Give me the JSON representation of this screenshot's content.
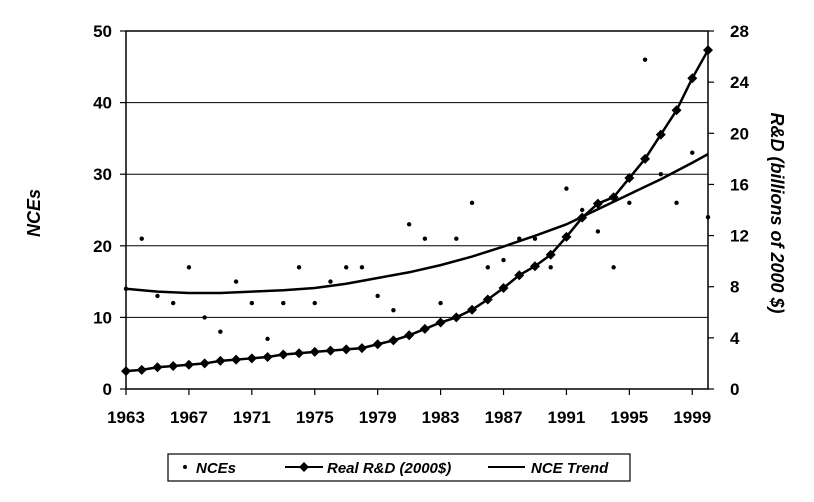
{
  "chart_data": {
    "type": "line",
    "xlabel": "",
    "ylabel": "NCEs",
    "y2label": "R&D (billions of 2000 $)",
    "xlim": [
      1963,
      2000
    ],
    "ylim": [
      0,
      50
    ],
    "y2lim": [
      0,
      28
    ],
    "x_ticks": [
      "1963",
      "1967",
      "1971",
      "1975",
      "1979",
      "1983",
      "1987",
      "1991",
      "1995",
      "1999"
    ],
    "y_ticks": [
      "0",
      "10",
      "20",
      "30",
      "40",
      "50"
    ],
    "y2_ticks": [
      "0",
      "4",
      "8",
      "12",
      "16",
      "20",
      "24",
      "28"
    ],
    "grid": "horizontal",
    "legend_position": "bottom",
    "series": [
      {
        "name": "NCEs",
        "style": "points",
        "axis": "left",
        "x": [
          1963,
          1964,
          1965,
          1966,
          1967,
          1968,
          1969,
          1970,
          1971,
          1972,
          1973,
          1974,
          1975,
          1976,
          1977,
          1978,
          1979,
          1980,
          1981,
          1982,
          1983,
          1984,
          1985,
          1986,
          1987,
          1988,
          1989,
          1990,
          1991,
          1992,
          1993,
          1994,
          1995,
          1996,
          1997,
          1998,
          1999,
          2000
        ],
        "values": [
          14,
          21,
          13,
          12,
          17,
          10,
          8,
          15,
          12,
          7,
          12,
          17,
          12,
          15,
          17,
          17,
          13,
          11,
          23,
          21,
          12,
          21,
          26,
          17,
          18,
          21,
          21,
          17,
          28,
          25,
          22,
          17,
          26,
          46,
          30,
          26,
          33,
          24
        ]
      },
      {
        "name": "Real R&D (2000$)",
        "style": "line-diamond",
        "axis": "right",
        "x": [
          1963,
          1964,
          1965,
          1966,
          1967,
          1968,
          1969,
          1970,
          1971,
          1972,
          1973,
          1974,
          1975,
          1976,
          1977,
          1978,
          1979,
          1980,
          1981,
          1982,
          1983,
          1984,
          1985,
          1986,
          1987,
          1988,
          1989,
          1990,
          1991,
          1992,
          1993,
          1994,
          1995,
          1996,
          1997,
          1998,
          1999,
          2000
        ],
        "values": [
          1.4,
          1.5,
          1.7,
          1.8,
          1.9,
          2.0,
          2.2,
          2.3,
          2.4,
          2.5,
          2.7,
          2.8,
          2.9,
          3.0,
          3.1,
          3.2,
          3.5,
          3.8,
          4.2,
          4.7,
          5.2,
          5.6,
          6.2,
          7.0,
          7.9,
          8.9,
          9.6,
          10.5,
          11.9,
          13.4,
          14.5,
          15.0,
          16.5,
          18.0,
          19.9,
          21.8,
          24.3,
          26.5
        ]
      },
      {
        "name": "NCE Trend",
        "style": "line",
        "axis": "left",
        "x": [
          1963,
          1965,
          1967,
          1969,
          1971,
          1973,
          1975,
          1977,
          1979,
          1981,
          1983,
          1985,
          1987,
          1989,
          1991,
          1993,
          1995,
          1997,
          1999,
          2000
        ],
        "values": [
          14.0,
          13.6,
          13.4,
          13.4,
          13.6,
          13.8,
          14.1,
          14.7,
          15.5,
          16.3,
          17.3,
          18.5,
          19.9,
          21.4,
          23.0,
          25.1,
          27.2,
          29.3,
          31.6,
          32.8
        ]
      }
    ]
  }
}
